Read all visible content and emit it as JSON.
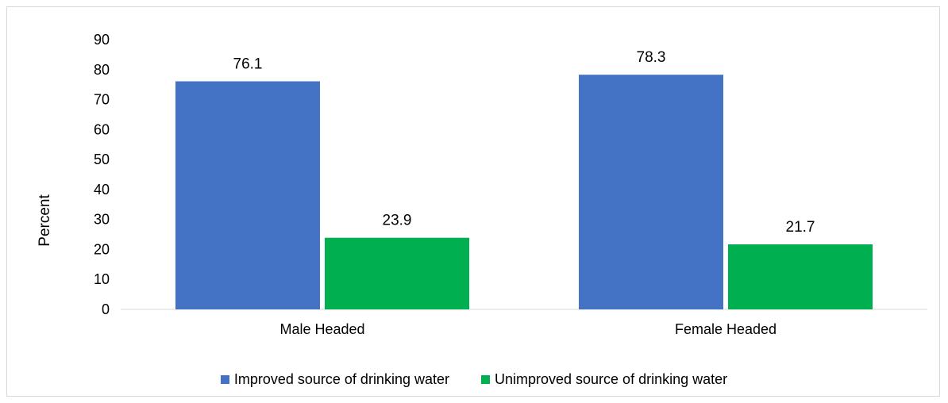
{
  "chart_data": {
    "type": "bar",
    "categories": [
      "Male Headed",
      "Female Headed"
    ],
    "series": [
      {
        "name": "Improved source of drinking water",
        "values": [
          76.1,
          78.3
        ],
        "color": "#4472c4"
      },
      {
        "name": "Unimproved source of drinking water",
        "values": [
          23.9,
          21.7
        ],
        "color": "#00b050"
      }
    ],
    "ylabel": "Percent",
    "xlabel": "",
    "ylim": [
      0,
      90
    ],
    "yticks": [
      0,
      10,
      20,
      30,
      40,
      50,
      60,
      70,
      80,
      90
    ],
    "grid": false,
    "legend_position": "bottom"
  }
}
